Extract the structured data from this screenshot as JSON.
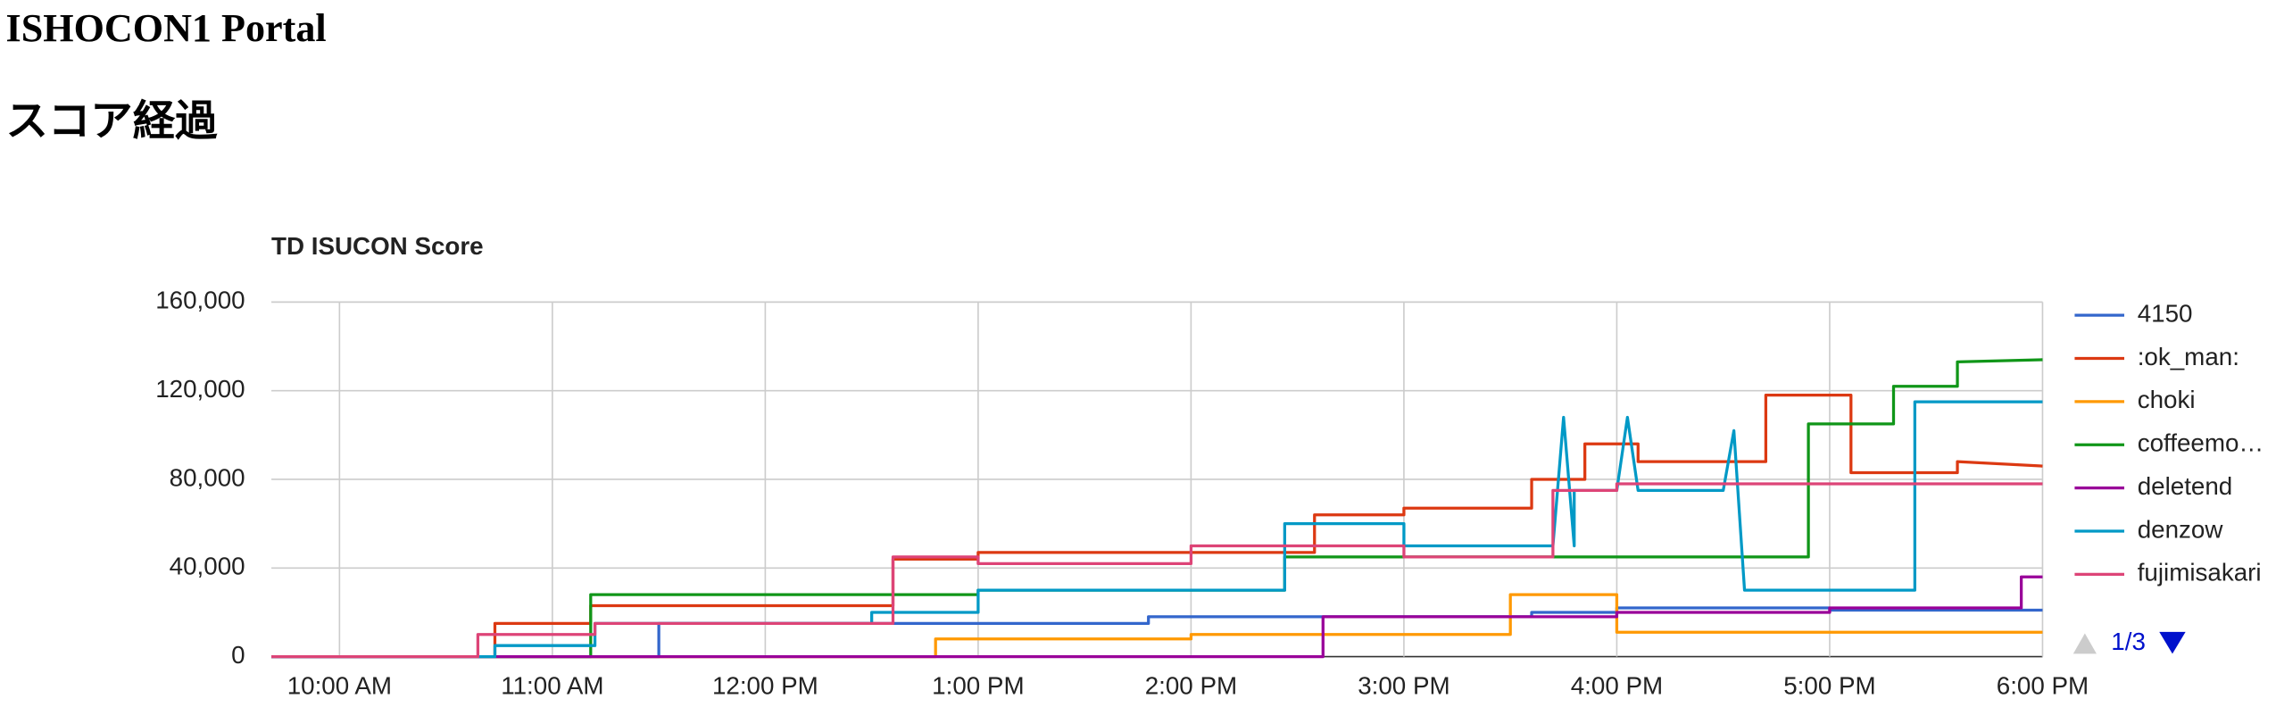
{
  "header": {
    "title": "ISHOCON1 Portal",
    "subtitle": "スコア経過"
  },
  "chart_data": {
    "type": "line",
    "title": "TD ISUCON Score",
    "xlim": [
      9.68,
      18.0
    ],
    "xticks": [
      {
        "value": 10,
        "label": "10:00 AM"
      },
      {
        "value": 11,
        "label": "11:00 AM"
      },
      {
        "value": 12,
        "label": "12:00 PM"
      },
      {
        "value": 13,
        "label": "1:00 PM"
      },
      {
        "value": 14,
        "label": "2:00 PM"
      },
      {
        "value": 15,
        "label": "3:00 PM"
      },
      {
        "value": 16,
        "label": "4:00 PM"
      },
      {
        "value": 17,
        "label": "5:00 PM"
      },
      {
        "value": 18,
        "label": "6:00 PM"
      }
    ],
    "ylim": [
      0,
      160000
    ],
    "yticks": [
      0,
      {
        "value": 40000,
        "label": "40,000"
      },
      {
        "value": 80000,
        "label": "80,000"
      },
      {
        "value": 120000,
        "label": "120,000"
      },
      {
        "value": 160000,
        "label": "160,000"
      }
    ],
    "grid": true,
    "legend": "right",
    "legend_page": "1/3",
    "series": [
      {
        "name": "4150",
        "color": "#3366cc",
        "x": [
          9.68,
          11.5,
          11.5,
          13.8,
          13.8,
          15.6,
          15.6,
          16.0,
          16.0,
          17.0,
          17.0,
          18.0
        ],
        "values": [
          0,
          0,
          15000,
          15000,
          18000,
          18000,
          20000,
          20000,
          22000,
          22000,
          21000,
          21000
        ]
      },
      {
        "name": ":ok_man:",
        "color": "#dc3912",
        "x": [
          9.68,
          10.73,
          10.73,
          11.18,
          11.18,
          12.6,
          12.6,
          13.0,
          13.0,
          14.58,
          14.58,
          15.0,
          15.0,
          15.6,
          15.6,
          15.85,
          15.85,
          16.1,
          16.1,
          16.7,
          16.7,
          17.1,
          17.1,
          17.6,
          17.6,
          18.0
        ],
        "values": [
          0,
          0,
          15000,
          15000,
          23000,
          23000,
          44000,
          44000,
          47000,
          47000,
          64000,
          64000,
          67000,
          67000,
          80000,
          80000,
          96000,
          96000,
          88000,
          88000,
          118000,
          118000,
          83000,
          83000,
          88000,
          86000
        ]
      },
      {
        "name": "choki",
        "color": "#ff9900",
        "x": [
          9.68,
          12.8,
          12.8,
          14.0,
          14.0,
          15.5,
          15.5,
          16.0,
          16.0,
          18.0
        ],
        "values": [
          0,
          0,
          8000,
          8000,
          10000,
          10000,
          28000,
          28000,
          11000,
          11000
        ]
      },
      {
        "name": "coffeemo…",
        "color": "#109618",
        "x": [
          9.68,
          11.18,
          11.18,
          13.0,
          13.0,
          14.44,
          14.44,
          16.9,
          16.9,
          17.3,
          17.3,
          17.6,
          17.6,
          18.0
        ],
        "values": [
          0,
          0,
          28000,
          28000,
          30000,
          30000,
          45000,
          45000,
          105000,
          105000,
          122000,
          122000,
          133000,
          134000
        ]
      },
      {
        "name": "deletend",
        "color": "#990099",
        "x": [
          9.68,
          14.62,
          14.62,
          16.0,
          16.0,
          17.0,
          17.0,
          17.9,
          17.9,
          18.0
        ],
        "values": [
          0,
          0,
          18000,
          18000,
          20000,
          20000,
          22000,
          22000,
          36000,
          36000
        ]
      },
      {
        "name": "denzow",
        "color": "#0099c6",
        "x": [
          9.68,
          10.73,
          10.73,
          11.2,
          11.2,
          12.5,
          12.5,
          13.0,
          13.0,
          14.44,
          14.44,
          15.0,
          15.0,
          15.7,
          15.75,
          15.8,
          15.8,
          16.0,
          16.05,
          16.1,
          16.5,
          16.55,
          16.6,
          17.4,
          17.4,
          18.0
        ],
        "values": [
          0,
          0,
          5000,
          5000,
          15000,
          15000,
          20000,
          20000,
          30000,
          30000,
          60000,
          60000,
          50000,
          50000,
          108000,
          50000,
          75000,
          75000,
          108000,
          75000,
          75000,
          102000,
          30000,
          30000,
          115000,
          115000
        ]
      },
      {
        "name": "fujimisakari",
        "color": "#dd4477",
        "x": [
          9.68,
          10.65,
          10.65,
          11.2,
          11.2,
          12.6,
          12.6,
          13.0,
          13.0,
          14.0,
          14.0,
          15.0,
          15.0,
          15.7,
          15.7,
          16.0,
          16.0,
          18.0
        ],
        "values": [
          0,
          0,
          10000,
          10000,
          15000,
          15000,
          45000,
          45000,
          42000,
          42000,
          50000,
          50000,
          45000,
          45000,
          75000,
          75000,
          78000,
          78000
        ]
      }
    ]
  }
}
